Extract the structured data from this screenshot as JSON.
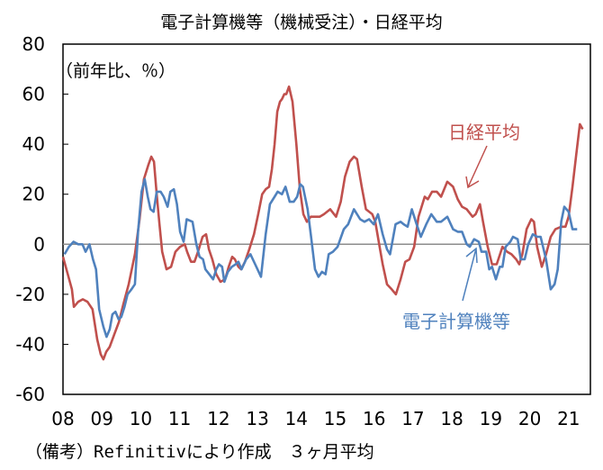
{
  "chart_data": {
    "type": "line",
    "title": "電子計算機等（機械受注）・日経平均",
    "ylabel": "（前年比、％）",
    "xlabel": "",
    "footer": "（備考）Refinitivにより作成　３ヶ月平均",
    "ylim": [
      -60,
      80
    ],
    "yticks": [
      80,
      60,
      40,
      20,
      0,
      -20,
      -40,
      -60
    ],
    "xlim": [
      2008,
      2021.56
    ],
    "xticks": [
      2008,
      2009,
      2010,
      2011,
      2012,
      2013,
      2014,
      2015,
      2016,
      2017,
      2018,
      2019,
      2020,
      2021
    ],
    "xtick_labels": [
      "08",
      "09",
      "10",
      "11",
      "12",
      "13",
      "14",
      "15",
      "16",
      "17",
      "18",
      "19",
      "20",
      "21"
    ],
    "grid": false,
    "zero_line": true,
    "series": [
      {
        "name": "日経平均",
        "color": "#c0504d",
        "points": [
          [
            2008.0,
            -5
          ],
          [
            2008.23,
            -18
          ],
          [
            2008.28,
            -25
          ],
          [
            2008.39,
            -23
          ],
          [
            2008.51,
            -22
          ],
          [
            2008.63,
            -23
          ],
          [
            2008.76,
            -26
          ],
          [
            2008.88,
            -38
          ],
          [
            2008.97,
            -44
          ],
          [
            2009.04,
            -46
          ],
          [
            2009.11,
            -43
          ],
          [
            2009.2,
            -41
          ],
          [
            2009.32,
            -36
          ],
          [
            2009.44,
            -31
          ],
          [
            2009.55,
            -24
          ],
          [
            2009.69,
            -16
          ],
          [
            2009.85,
            -4
          ],
          [
            2009.97,
            10
          ],
          [
            2010.08,
            26
          ],
          [
            2010.2,
            32
          ],
          [
            2010.27,
            35
          ],
          [
            2010.34,
            33
          ],
          [
            2010.41,
            20
          ],
          [
            2010.48,
            8
          ],
          [
            2010.55,
            -3
          ],
          [
            2010.66,
            -10
          ],
          [
            2010.78,
            -9
          ],
          [
            2010.89,
            -3
          ],
          [
            2011.01,
            -1
          ],
          [
            2011.13,
            0
          ],
          [
            2011.19,
            -3
          ],
          [
            2011.29,
            -7
          ],
          [
            2011.38,
            -7
          ],
          [
            2011.47,
            -3
          ],
          [
            2011.59,
            3
          ],
          [
            2011.68,
            4
          ],
          [
            2011.75,
            -2
          ],
          [
            2011.84,
            -6
          ],
          [
            2011.94,
            -12
          ],
          [
            2012.05,
            -15
          ],
          [
            2012.17,
            -14
          ],
          [
            2012.26,
            -9
          ],
          [
            2012.35,
            -5
          ],
          [
            2012.42,
            -6
          ],
          [
            2012.51,
            -9
          ],
          [
            2012.58,
            -10
          ],
          [
            2012.68,
            -7
          ],
          [
            2012.79,
            -2
          ],
          [
            2012.91,
            4
          ],
          [
            2013.02,
            12
          ],
          [
            2013.12,
            20
          ],
          [
            2013.21,
            22
          ],
          [
            2013.3,
            23
          ],
          [
            2013.37,
            30
          ],
          [
            2013.44,
            40
          ],
          [
            2013.51,
            53
          ],
          [
            2013.58,
            57
          ],
          [
            2013.63,
            58
          ],
          [
            2013.69,
            60
          ],
          [
            2013.74,
            60
          ],
          [
            2013.81,
            63
          ],
          [
            2013.9,
            57
          ],
          [
            2014.0,
            40
          ],
          [
            2014.09,
            22
          ],
          [
            2014.18,
            12
          ],
          [
            2014.27,
            9
          ],
          [
            2014.37,
            11
          ],
          [
            2014.48,
            11
          ],
          [
            2014.6,
            11
          ],
          [
            2014.71,
            12
          ],
          [
            2014.87,
            14
          ],
          [
            2015.02,
            11
          ],
          [
            2015.14,
            17
          ],
          [
            2015.25,
            27
          ],
          [
            2015.37,
            33
          ],
          [
            2015.48,
            35
          ],
          [
            2015.56,
            34
          ],
          [
            2015.68,
            23
          ],
          [
            2015.79,
            14
          ],
          [
            2015.95,
            12
          ],
          [
            2016.03,
            9
          ],
          [
            2016.14,
            -1
          ],
          [
            2016.22,
            -8
          ],
          [
            2016.33,
            -16
          ],
          [
            2016.45,
            -18
          ],
          [
            2016.56,
            -20
          ],
          [
            2016.68,
            -14
          ],
          [
            2016.8,
            -7
          ],
          [
            2016.91,
            -6
          ],
          [
            2017.03,
            -1
          ],
          [
            2017.14,
            11
          ],
          [
            2017.3,
            19
          ],
          [
            2017.38,
            18
          ],
          [
            2017.49,
            21
          ],
          [
            2017.61,
            21
          ],
          [
            2017.72,
            19
          ],
          [
            2017.88,
            25
          ],
          [
            2018.03,
            23
          ],
          [
            2018.15,
            18
          ],
          [
            2018.26,
            15
          ],
          [
            2018.38,
            14
          ],
          [
            2018.53,
            11
          ],
          [
            2018.61,
            12
          ],
          [
            2018.72,
            16
          ],
          [
            2018.8,
            9
          ],
          [
            2018.92,
            -1
          ],
          [
            2019.03,
            -8
          ],
          [
            2019.15,
            -8
          ],
          [
            2019.3,
            -1
          ],
          [
            2019.42,
            -3
          ],
          [
            2019.53,
            -4
          ],
          [
            2019.65,
            -6
          ],
          [
            2019.73,
            -8
          ],
          [
            2019.81,
            -4
          ],
          [
            2019.92,
            6
          ],
          [
            2020.04,
            10
          ],
          [
            2020.11,
            9
          ],
          [
            2020.19,
            -1
          ],
          [
            2020.31,
            -9
          ],
          [
            2020.42,
            -4
          ],
          [
            2020.54,
            3
          ],
          [
            2020.66,
            6
          ],
          [
            2020.81,
            7
          ],
          [
            2020.92,
            7
          ],
          [
            2021.0,
            11
          ],
          [
            2021.1,
            23
          ],
          [
            2021.19,
            35
          ],
          [
            2021.29,
            48
          ],
          [
            2021.36,
            46
          ]
        ]
      },
      {
        "name": "電子計算機等",
        "color": "#4f81bd",
        "points": [
          [
            2008.04,
            -4
          ],
          [
            2008.15,
            -1
          ],
          [
            2008.27,
            1
          ],
          [
            2008.39,
            0
          ],
          [
            2008.5,
            0
          ],
          [
            2008.58,
            -3
          ],
          [
            2008.68,
            0
          ],
          [
            2008.77,
            -6
          ],
          [
            2008.85,
            -10
          ],
          [
            2008.93,
            -26
          ],
          [
            2009.04,
            -33
          ],
          [
            2009.12,
            -37
          ],
          [
            2009.2,
            -34
          ],
          [
            2009.27,
            -28
          ],
          [
            2009.35,
            -27
          ],
          [
            2009.43,
            -30
          ],
          [
            2009.5,
            -29
          ],
          [
            2009.58,
            -25
          ],
          [
            2009.66,
            -20
          ],
          [
            2009.76,
            -18
          ],
          [
            2009.85,
            -16
          ],
          [
            2009.93,
            5
          ],
          [
            2010.02,
            21
          ],
          [
            2010.1,
            26
          ],
          [
            2010.18,
            19
          ],
          [
            2010.25,
            14
          ],
          [
            2010.33,
            13
          ],
          [
            2010.41,
            21
          ],
          [
            2010.51,
            21
          ],
          [
            2010.59,
            19
          ],
          [
            2010.69,
            15
          ],
          [
            2010.76,
            21
          ],
          [
            2010.85,
            22
          ],
          [
            2010.93,
            16
          ],
          [
            2011.01,
            5
          ],
          [
            2011.1,
            1
          ],
          [
            2011.18,
            10
          ],
          [
            2011.33,
            9
          ],
          [
            2011.43,
            0
          ],
          [
            2011.51,
            -5
          ],
          [
            2011.6,
            -6
          ],
          [
            2011.66,
            -10
          ],
          [
            2011.76,
            -12
          ],
          [
            2011.86,
            -14
          ],
          [
            2011.94,
            -10
          ],
          [
            2012.01,
            -8
          ],
          [
            2012.09,
            -9
          ],
          [
            2012.15,
            -15
          ],
          [
            2012.24,
            -11
          ],
          [
            2012.34,
            -9
          ],
          [
            2012.44,
            -8
          ],
          [
            2012.51,
            -7
          ],
          [
            2012.59,
            -10
          ],
          [
            2012.71,
            -6
          ],
          [
            2012.82,
            -4
          ],
          [
            2012.94,
            -8
          ],
          [
            2013.09,
            -13
          ],
          [
            2013.21,
            4
          ],
          [
            2013.32,
            16
          ],
          [
            2013.44,
            19
          ],
          [
            2013.52,
            21
          ],
          [
            2013.63,
            20
          ],
          [
            2013.72,
            23
          ],
          [
            2013.83,
            17
          ],
          [
            2013.93,
            17
          ],
          [
            2014.02,
            19
          ],
          [
            2014.1,
            24
          ],
          [
            2014.17,
            23
          ],
          [
            2014.29,
            14
          ],
          [
            2014.37,
            4
          ],
          [
            2014.48,
            -10
          ],
          [
            2014.57,
            -13
          ],
          [
            2014.66,
            -11
          ],
          [
            2014.75,
            -12
          ],
          [
            2014.83,
            -4
          ],
          [
            2014.94,
            -3
          ],
          [
            2015.06,
            -1
          ],
          [
            2015.22,
            6
          ],
          [
            2015.33,
            8
          ],
          [
            2015.48,
            14
          ],
          [
            2015.64,
            10
          ],
          [
            2015.75,
            9
          ],
          [
            2015.87,
            10
          ],
          [
            2015.99,
            8
          ],
          [
            2016.1,
            12
          ],
          [
            2016.22,
            4
          ],
          [
            2016.33,
            -2
          ],
          [
            2016.41,
            -4
          ],
          [
            2016.55,
            8
          ],
          [
            2016.68,
            9
          ],
          [
            2016.76,
            8
          ],
          [
            2016.86,
            7
          ],
          [
            2016.97,
            14
          ],
          [
            2017.07,
            9
          ],
          [
            2017.2,
            3
          ],
          [
            2017.34,
            8
          ],
          [
            2017.47,
            12
          ],
          [
            2017.61,
            9
          ],
          [
            2017.72,
            9
          ],
          [
            2017.88,
            11
          ],
          [
            2018.03,
            6
          ],
          [
            2018.15,
            5
          ],
          [
            2018.26,
            5
          ],
          [
            2018.38,
            0
          ],
          [
            2018.46,
            -1
          ],
          [
            2018.57,
            2
          ],
          [
            2018.69,
            1
          ],
          [
            2018.76,
            -3
          ],
          [
            2018.88,
            -3
          ],
          [
            2018.96,
            -10
          ],
          [
            2019.03,
            -9
          ],
          [
            2019.13,
            -14
          ],
          [
            2019.23,
            -9
          ],
          [
            2019.3,
            -9
          ],
          [
            2019.38,
            -1
          ],
          [
            2019.5,
            1
          ],
          [
            2019.57,
            3
          ],
          [
            2019.69,
            2
          ],
          [
            2019.77,
            -6
          ],
          [
            2019.87,
            -6
          ],
          [
            2019.96,
            0
          ],
          [
            2020.08,
            4
          ],
          [
            2020.19,
            3
          ],
          [
            2020.28,
            3
          ],
          [
            2020.42,
            -6
          ],
          [
            2020.54,
            -18
          ],
          [
            2020.64,
            -16
          ],
          [
            2020.72,
            -10
          ],
          [
            2020.81,
            9
          ],
          [
            2020.89,
            15
          ],
          [
            2021.0,
            13
          ],
          [
            2021.1,
            6
          ],
          [
            2021.22,
            6
          ]
        ]
      }
    ],
    "annotations": [
      {
        "text": "日経平均",
        "series": "日経平均",
        "color": "#c0504d"
      },
      {
        "text": "電子計算機等",
        "series": "電子計算機等",
        "color": "#4f81bd"
      }
    ]
  }
}
